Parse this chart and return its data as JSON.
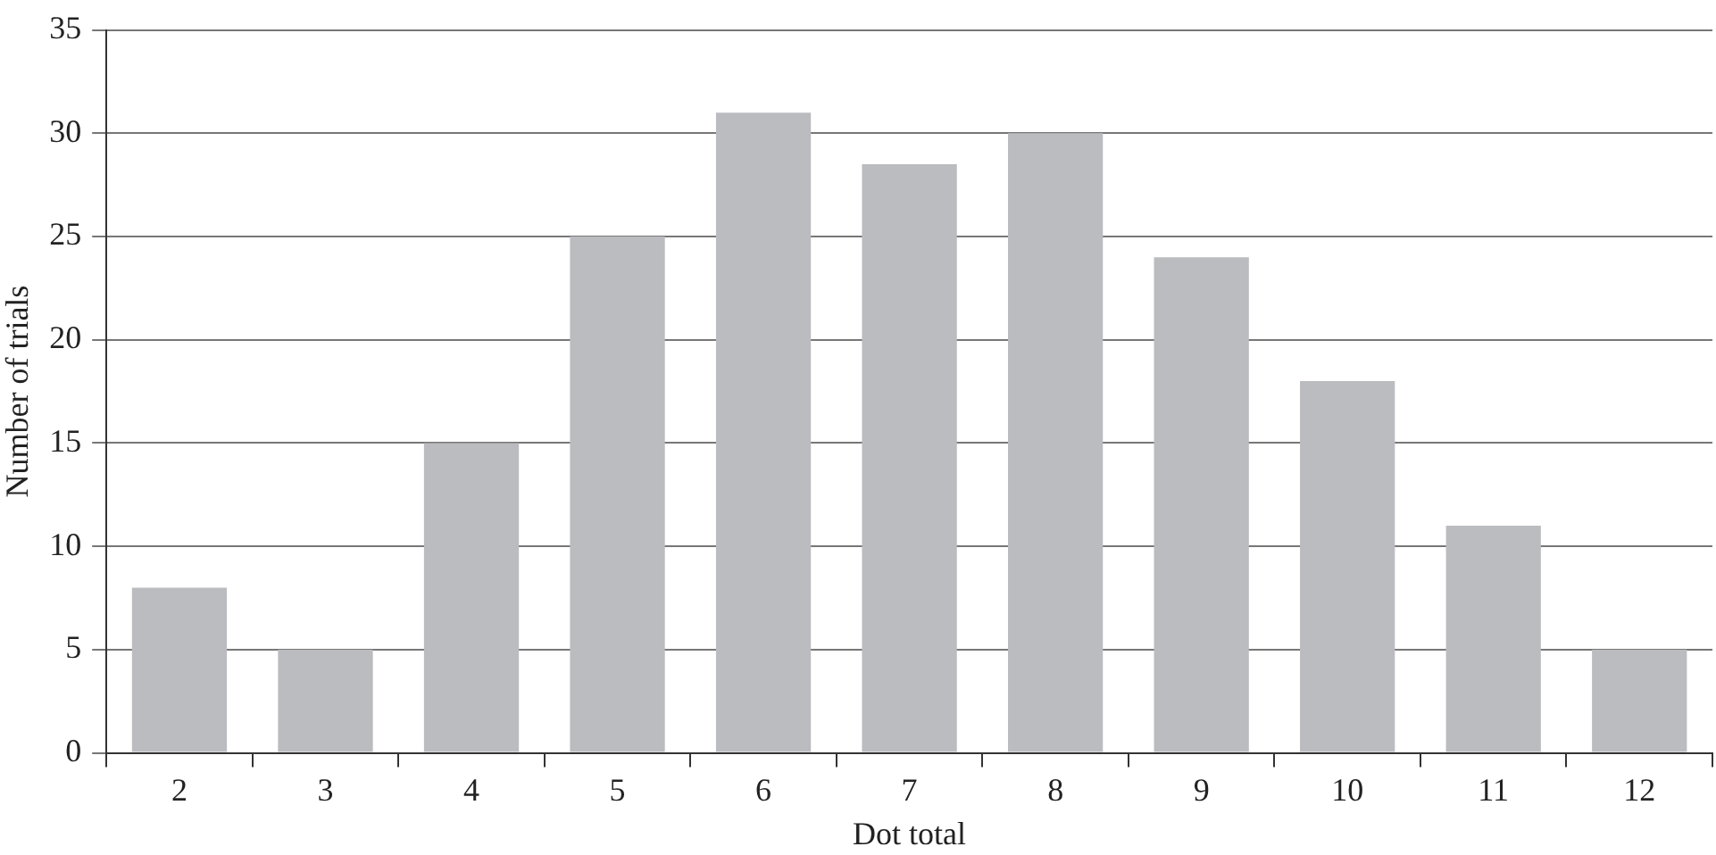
{
  "chart_data": {
    "type": "bar",
    "xlabel": "Dot total",
    "ylabel": "Number of trials",
    "categories": [
      "2",
      "3",
      "4",
      "5",
      "6",
      "7",
      "8",
      "9",
      "10",
      "11",
      "12"
    ],
    "values": [
      8,
      5,
      15,
      25,
      31,
      28.5,
      30,
      24,
      18,
      11,
      5
    ],
    "color": "#bbbcc0",
    "ylim": [
      0,
      35
    ],
    "yticks": [
      0,
      5,
      10,
      15,
      20,
      25,
      30,
      35
    ],
    "grid": "y",
    "legend": false
  }
}
